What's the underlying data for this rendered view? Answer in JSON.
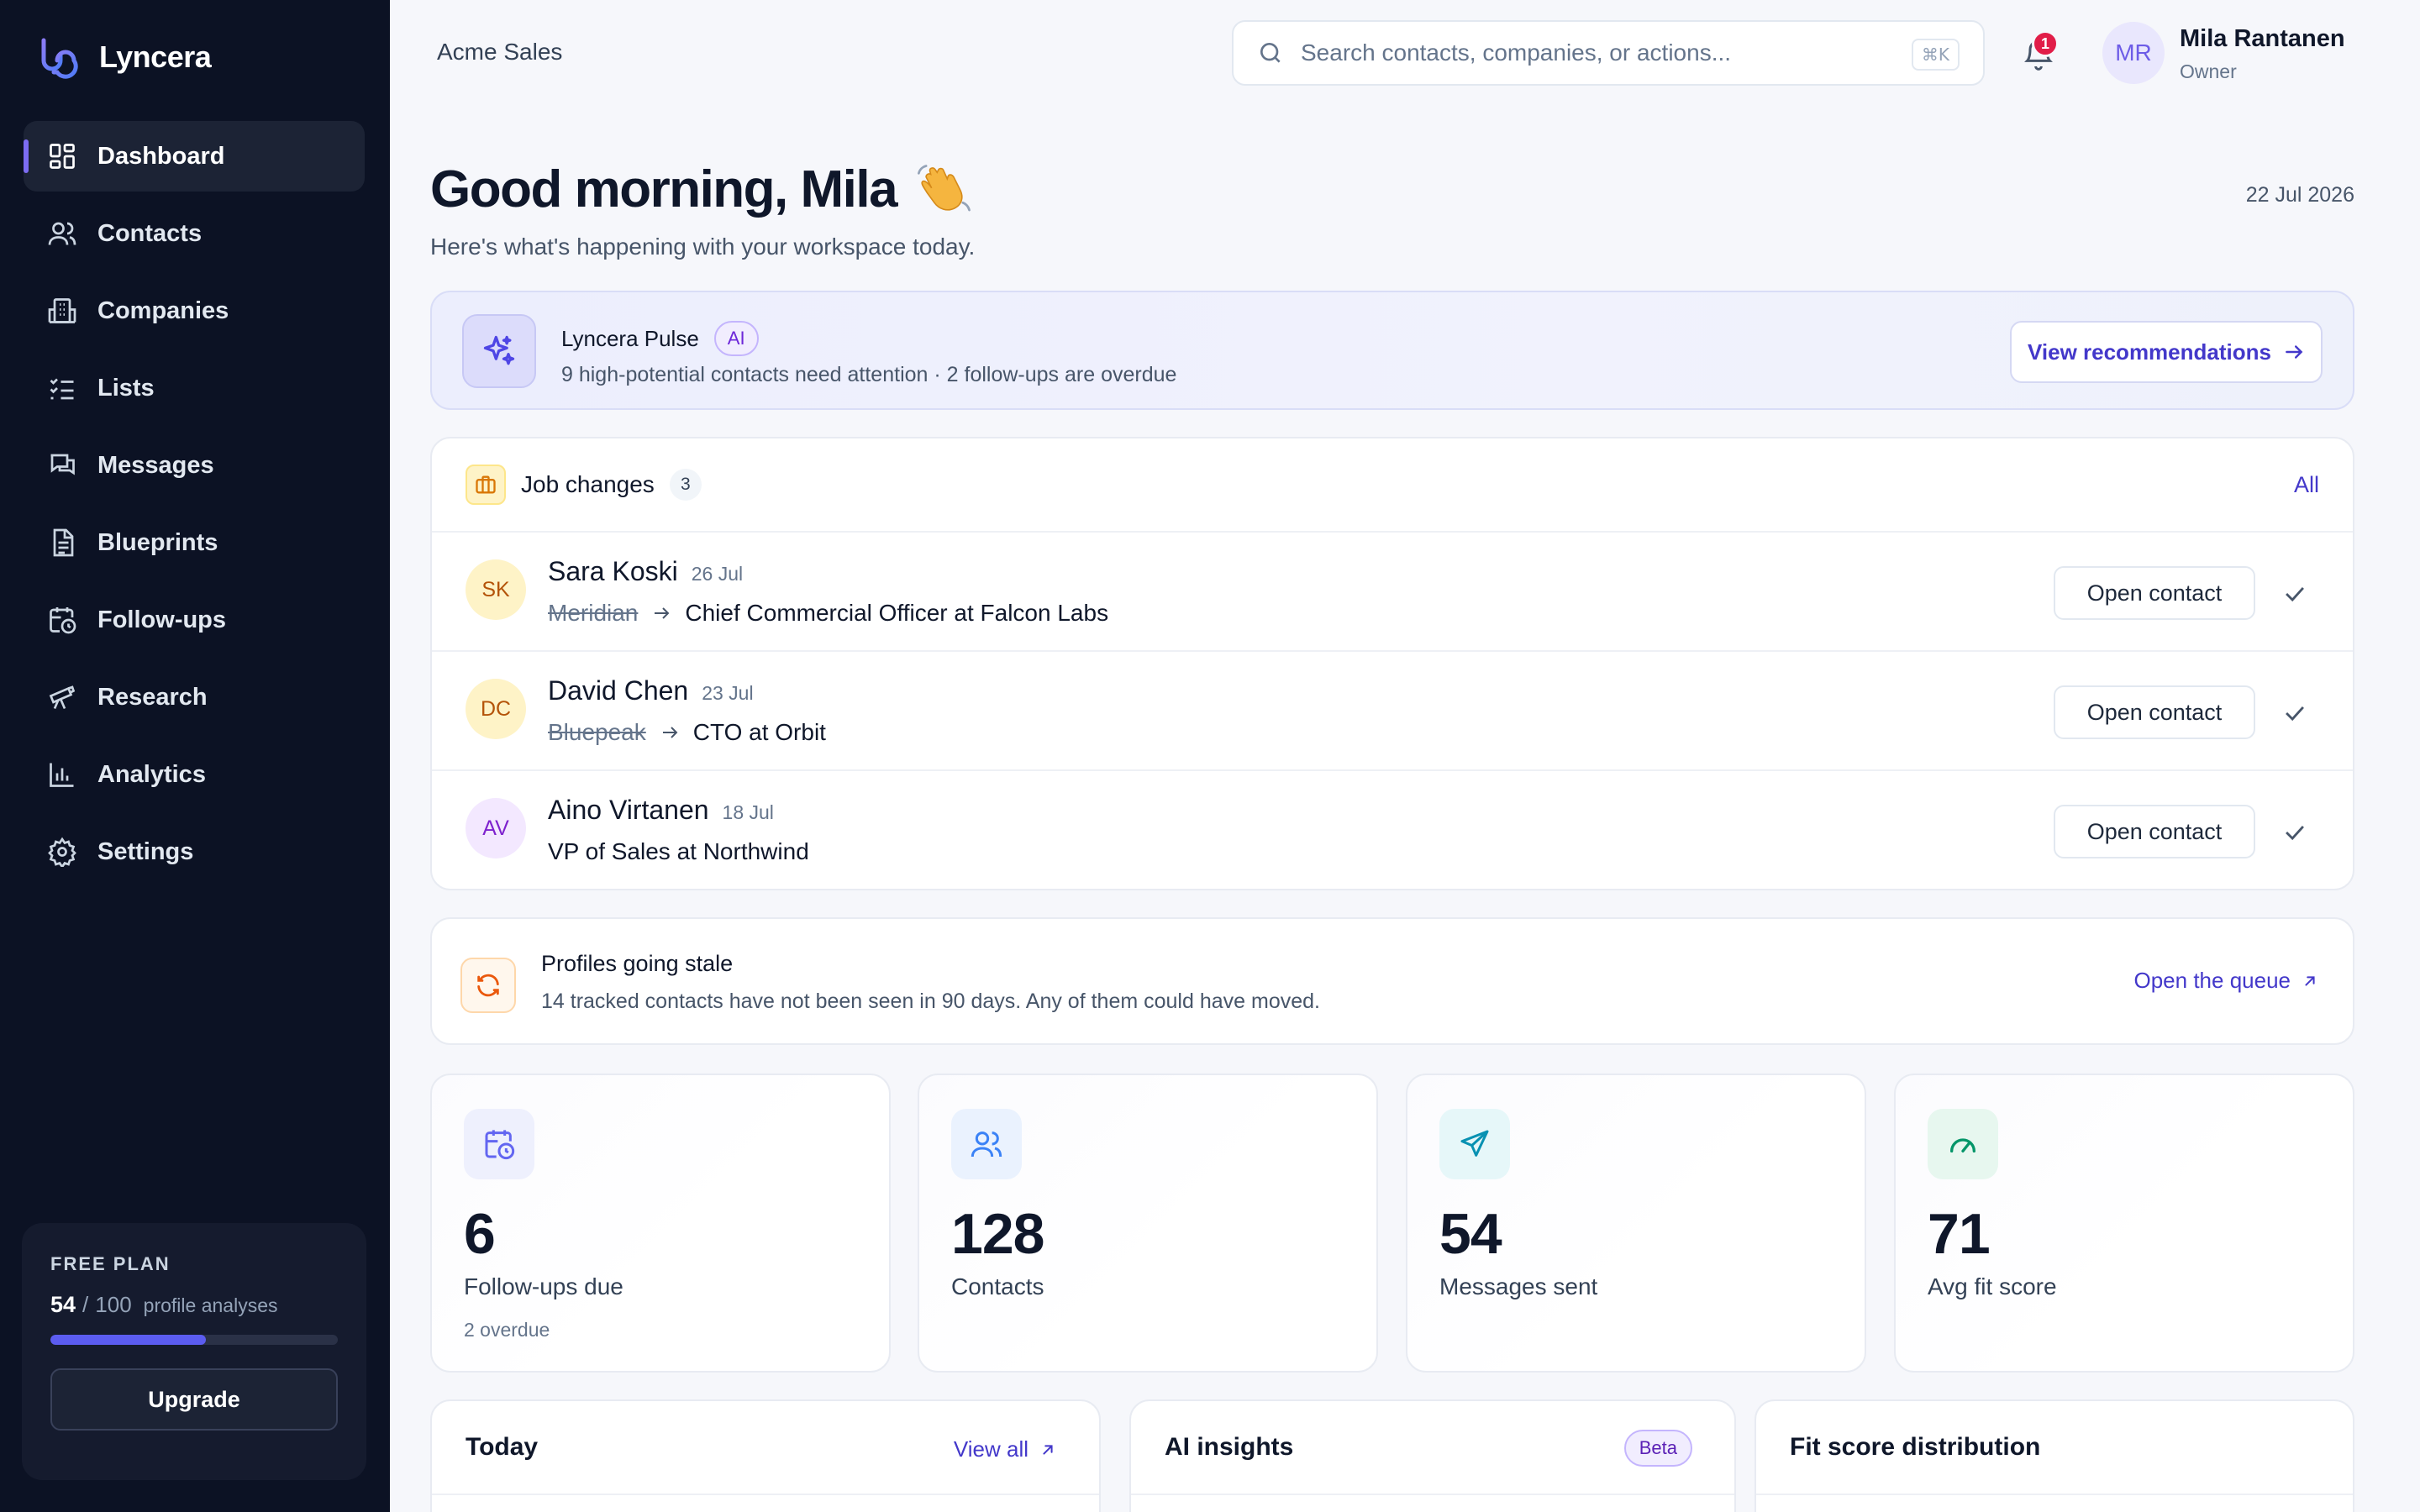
{
  "app": {
    "name": "Lyncera"
  },
  "sidebar": {
    "items": [
      {
        "label": "Dashboard",
        "icon": "grid-icon",
        "active": true
      },
      {
        "label": "Contacts",
        "icon": "users-icon"
      },
      {
        "label": "Companies",
        "icon": "building-icon"
      },
      {
        "label": "Lists",
        "icon": "list-check-icon"
      },
      {
        "label": "Messages",
        "icon": "messages-icon"
      },
      {
        "label": "Blueprints",
        "icon": "document-icon"
      },
      {
        "label": "Follow-ups",
        "icon": "calendar-clock-icon"
      },
      {
        "label": "Research",
        "icon": "telescope-icon"
      },
      {
        "label": "Analytics",
        "icon": "bar-chart-icon"
      },
      {
        "label": "Settings",
        "icon": "gear-icon"
      }
    ],
    "plan": {
      "label": "FREE PLAN",
      "used": "54",
      "separator": "/",
      "limit": "100",
      "unit": "profile analyses",
      "progress": 0.54,
      "upgrade_label": "Upgrade"
    }
  },
  "topbar": {
    "workspace": "Acme Sales",
    "search_placeholder": "Search contacts, companies, or actions...",
    "shortcut": "⌘K",
    "notifications_count": "1",
    "user": {
      "initials": "MR",
      "name": "Mila Rantanen",
      "role": "Owner"
    }
  },
  "header": {
    "greeting": "Good morning, Mila",
    "subtitle": "Here's what's happening with your workspace today.",
    "date": "22 Jul 2026"
  },
  "pulse": {
    "title": "Lyncera Pulse",
    "badge": "AI",
    "text": "9 high-potential contacts need attention · 2 follow-ups are overdue",
    "button": "View recommendations"
  },
  "job_changes": {
    "title": "Job changes",
    "count": "3",
    "all_label": "All",
    "open_label": "Open contact",
    "rows": [
      {
        "initials": "SK",
        "name": "Sara Koski",
        "date": "26 Jul",
        "old_company": "Meridian",
        "new_role": "Chief Commercial Officer at Falcon Labs",
        "avatar_bg": "#fef3c7",
        "avatar_fg": "#b45309"
      },
      {
        "initials": "DC",
        "name": "David Chen",
        "date": "23 Jul",
        "old_company": "Bluepeak",
        "new_role": "CTO at Orbit",
        "avatar_bg": "#fef3c7",
        "avatar_fg": "#b45309"
      },
      {
        "initials": "AV",
        "name": "Aino Virtanen",
        "date": "18 Jul",
        "old_company": "",
        "new_role": "VP of Sales at Northwind",
        "avatar_bg": "#f3e8ff",
        "avatar_fg": "#7e22ce"
      }
    ]
  },
  "stale": {
    "title": "Profiles going stale",
    "text": "14 tracked contacts have not been seen in 90 days. Any of them could have moved.",
    "link": "Open the queue"
  },
  "stats": [
    {
      "value": "6",
      "label": "Follow-ups due",
      "sub": "2 overdue",
      "icon": "calendar-clock-icon",
      "color": "#6366f1",
      "bg": "#eef0fd"
    },
    {
      "value": "128",
      "label": "Contacts",
      "sub": "",
      "icon": "users-icon",
      "color": "#3b82f6",
      "bg": "#eaf2fe"
    },
    {
      "value": "54",
      "label": "Messages sent",
      "sub": "",
      "icon": "send-icon",
      "color": "#0891b2",
      "bg": "#e6f7f9"
    },
    {
      "value": "71",
      "label": "Avg fit score",
      "sub": "",
      "icon": "gauge-icon",
      "color": "#059669",
      "bg": "#e7f7ef"
    }
  ],
  "panels": {
    "today": {
      "title": "Today",
      "link": "View all"
    },
    "insights": {
      "title": "AI insights",
      "badge": "Beta"
    },
    "fit": {
      "title": "Fit score distribution"
    }
  }
}
